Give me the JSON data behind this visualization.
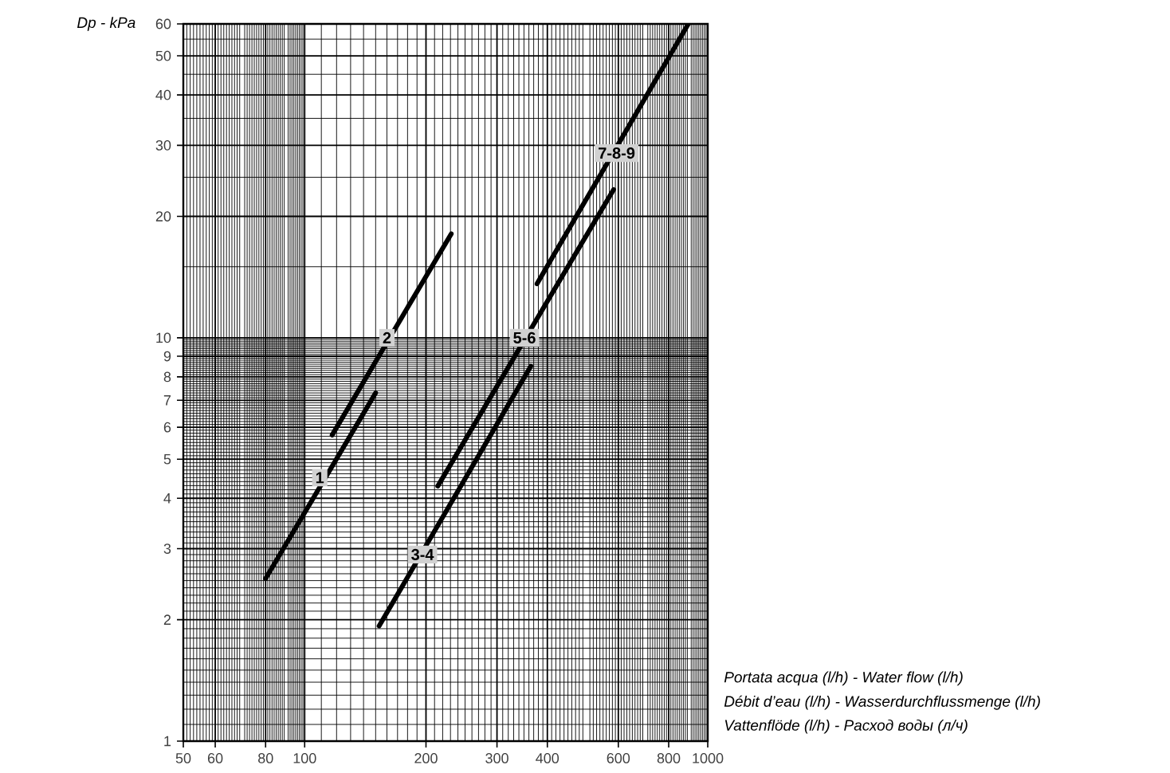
{
  "chart_data": {
    "type": "line",
    "log": "xy",
    "grid": true,
    "marker": "none",
    "line_style": "solid",
    "xlabel": "Portata acqua (l/h) - Water flow (l/h)",
    "ylabel": "Dp - kPa",
    "xlim": [
      50,
      1000
    ],
    "ylim": [
      1,
      60
    ],
    "xticks": [
      50,
      60,
      80,
      100,
      200,
      300,
      400,
      600,
      800,
      1000
    ],
    "yticks": [
      1,
      2,
      3,
      4,
      5,
      6,
      7,
      8,
      9,
      10,
      20,
      30,
      40,
      50,
      60
    ],
    "series": [
      {
        "color": "#000000",
        "x": [
          80,
          150
        ],
        "values": [
          2.53,
          7.3
        ]
      },
      {
        "color": "#000000",
        "x": [
          117,
          231
        ],
        "values": [
          5.74,
          18.1
        ]
      },
      {
        "color": "#000000",
        "x": [
          153,
          364
        ],
        "values": [
          1.93,
          8.5
        ]
      },
      {
        "color": "#000000",
        "x": [
          214,
          584
        ],
        "values": [
          4.29,
          23.3
        ]
      },
      {
        "color": "#000000",
        "x": [
          377,
          895
        ],
        "values": [
          13.6,
          60
        ]
      }
    ],
    "annotations": [
      {
        "text": "1",
        "x": 109,
        "y": 4.5
      },
      {
        "text": "2",
        "x": 160,
        "y": 10
      },
      {
        "text": "3-4",
        "x": 196,
        "y": 2.9
      },
      {
        "text": "5-6",
        "x": 351,
        "y": 10
      },
      {
        "text": "7-8-9",
        "x": 594,
        "y": 28.7
      },
      "Débit d’eau (l/h) - Wasserdurchflussmenge (l/h)",
      "Vattenflöde (l/h) - Расход воды (л/ч)"
    ]
  }
}
